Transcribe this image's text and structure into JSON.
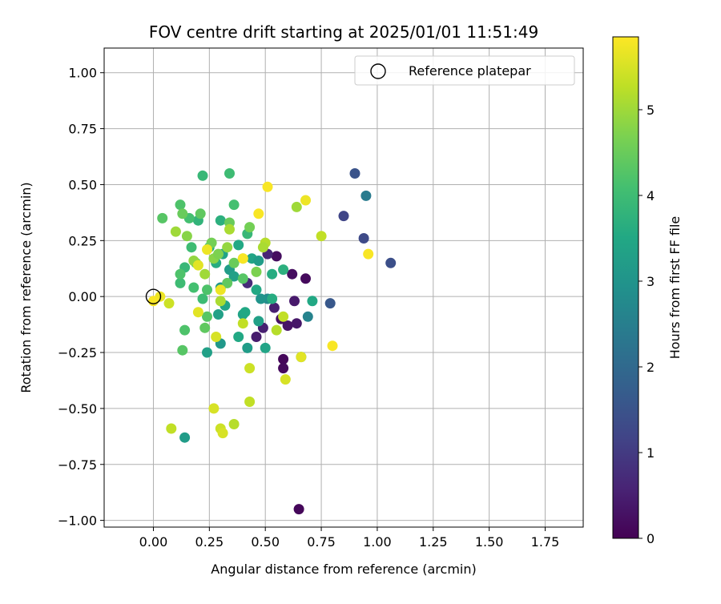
{
  "chart_data": {
    "type": "scatter",
    "title": "FOV centre drift starting at 2025/01/01 11:51:49",
    "xlabel": "Angular distance from reference (arcmin)",
    "ylabel": "Rotation from reference (arcmin)",
    "xlim": [
      -0.22,
      1.92
    ],
    "ylim": [
      -1.03,
      1.11
    ],
    "xticks": [
      0.0,
      0.25,
      0.5,
      0.75,
      1.0,
      1.25,
      1.5,
      1.75
    ],
    "xtick_labels": [
      "0.00",
      "0.25",
      "0.50",
      "0.75",
      "1.00",
      "1.25",
      "1.50",
      "1.75"
    ],
    "yticks": [
      -1.0,
      -0.75,
      -0.5,
      -0.25,
      0.0,
      0.25,
      0.5,
      0.75,
      1.0
    ],
    "ytick_labels": [
      "−1.00",
      "−0.75",
      "−0.50",
      "−0.25",
      "0.00",
      "0.25",
      "0.50",
      "0.75",
      "1.00"
    ],
    "grid": true,
    "legend": {
      "placement": "top-right",
      "entries": [
        "Reference platepar"
      ]
    },
    "reference_point": {
      "name": "Reference platepar",
      "x": 0.0,
      "y": 0.0
    },
    "colorbar": {
      "label": "Hours from first FF file",
      "min": 0,
      "max": 5.85,
      "ticks": [
        0,
        1,
        2,
        3,
        4,
        5
      ],
      "tick_labels": [
        "0",
        "1",
        "2",
        "3",
        "4",
        "5"
      ],
      "colormap": "viridis"
    },
    "series": [
      {
        "color_by": "Hours from first FF file",
        "points": [
          [
            0.65,
            -0.95,
            0.1
          ],
          [
            0.55,
            0.18,
            0.2
          ],
          [
            0.62,
            0.1,
            0.2
          ],
          [
            0.68,
            0.08,
            0.15
          ],
          [
            0.58,
            -0.28,
            0.1
          ],
          [
            0.58,
            -0.32,
            0.15
          ],
          [
            0.6,
            -0.13,
            0.3
          ],
          [
            0.57,
            -0.1,
            0.25
          ],
          [
            0.63,
            -0.02,
            0.4
          ],
          [
            0.64,
            -0.12,
            0.35
          ],
          [
            0.49,
            -0.14,
            0.5
          ],
          [
            0.46,
            -0.18,
            0.45
          ],
          [
            0.51,
            0.19,
            0.6
          ],
          [
            0.54,
            -0.05,
            0.5
          ],
          [
            0.42,
            0.06,
            0.7
          ],
          [
            0.9,
            0.55,
            1.5
          ],
          [
            0.85,
            0.36,
            1.2
          ],
          [
            0.94,
            0.26,
            1.3
          ],
          [
            1.06,
            0.15,
            1.4
          ],
          [
            0.79,
            -0.03,
            1.6
          ],
          [
            0.95,
            0.45,
            2.4
          ],
          [
            0.69,
            -0.09,
            2.6
          ],
          [
            0.51,
            -0.01,
            2.8
          ],
          [
            0.48,
            -0.01,
            3.0
          ],
          [
            0.34,
            0.12,
            3.2
          ],
          [
            0.3,
            0.04,
            3.1
          ],
          [
            0.36,
            0.09,
            3.3
          ],
          [
            0.44,
            0.17,
            3.4
          ],
          [
            0.47,
            0.16,
            3.2
          ],
          [
            0.38,
            0.23,
            3.5
          ],
          [
            0.28,
            0.15,
            3.6
          ],
          [
            0.31,
            0.19,
            3.4
          ],
          [
            0.25,
            0.22,
            3.7
          ],
          [
            0.29,
            -0.08,
            3.3
          ],
          [
            0.32,
            -0.04,
            3.4
          ],
          [
            0.38,
            -0.18,
            3.5
          ],
          [
            0.42,
            -0.23,
            3.2
          ],
          [
            0.3,
            -0.21,
            3.1
          ],
          [
            0.24,
            -0.25,
            3.3
          ],
          [
            0.14,
            -0.63,
            3.2
          ],
          [
            0.4,
            -0.08,
            3.4
          ],
          [
            0.41,
            -0.07,
            3.5
          ],
          [
            0.47,
            -0.11,
            3.3
          ],
          [
            0.5,
            -0.23,
            3.4
          ],
          [
            0.53,
            -0.01,
            3.6
          ],
          [
            0.46,
            0.03,
            3.5
          ],
          [
            0.58,
            0.12,
            3.7
          ],
          [
            0.53,
            0.1,
            3.6
          ],
          [
            0.71,
            -0.02,
            3.5
          ],
          [
            0.66,
            -0.27,
            3.6
          ],
          [
            0.2,
            0.34,
            3.8
          ],
          [
            0.3,
            0.34,
            3.7
          ],
          [
            0.42,
            0.28,
            3.9
          ],
          [
            0.22,
            0.54,
            3.9
          ],
          [
            0.34,
            0.55,
            4.0
          ],
          [
            0.36,
            0.41,
            4.1
          ],
          [
            0.12,
            0.41,
            4.2
          ],
          [
            0.16,
            0.35,
            4.1
          ],
          [
            0.17,
            0.22,
            4.0
          ],
          [
            0.14,
            0.13,
            3.9
          ],
          [
            0.12,
            0.06,
            4.0
          ],
          [
            0.18,
            0.04,
            4.1
          ],
          [
            0.22,
            -0.01,
            4.0
          ],
          [
            0.24,
            0.03,
            4.2
          ],
          [
            0.21,
            0.37,
            4.4
          ],
          [
            0.13,
            0.37,
            4.5
          ],
          [
            0.04,
            0.35,
            4.3
          ],
          [
            0.19,
            0.15,
            4.4
          ],
          [
            0.12,
            0.1,
            4.2
          ],
          [
            0.24,
            -0.09,
            4.3
          ],
          [
            0.14,
            -0.15,
            4.2
          ],
          [
            0.13,
            -0.24,
            4.3
          ],
          [
            0.23,
            -0.14,
            4.4
          ],
          [
            0.34,
            0.33,
            4.5
          ],
          [
            0.33,
            0.06,
            4.4
          ],
          [
            0.4,
            0.08,
            4.3
          ],
          [
            0.43,
            0.31,
            4.6
          ],
          [
            0.36,
            0.15,
            4.5
          ],
          [
            0.46,
            0.11,
            4.7
          ],
          [
            0.26,
            0.24,
            4.6
          ],
          [
            0.27,
            0.17,
            4.8
          ],
          [
            0.29,
            0.19,
            4.7
          ],
          [
            0.33,
            0.22,
            4.9
          ],
          [
            0.1,
            0.29,
            5.0
          ],
          [
            0.15,
            0.27,
            4.8
          ],
          [
            0.18,
            0.16,
            4.9
          ],
          [
            0.23,
            0.1,
            5.0
          ],
          [
            0.3,
            -0.02,
            5.1
          ],
          [
            0.4,
            0.17,
            5.0
          ],
          [
            0.5,
            0.24,
            5.2
          ],
          [
            0.49,
            0.22,
            5.1
          ],
          [
            0.55,
            -0.15,
            5.2
          ],
          [
            0.58,
            -0.09,
            5.3
          ],
          [
            0.64,
            0.4,
            5.0
          ],
          [
            0.34,
            0.3,
            5.1
          ],
          [
            0.4,
            -0.12,
            5.3
          ],
          [
            0.43,
            -0.32,
            5.4
          ],
          [
            0.43,
            -0.47,
            5.3
          ],
          [
            0.36,
            -0.57,
            5.2
          ],
          [
            0.27,
            -0.5,
            5.5
          ],
          [
            0.3,
            -0.59,
            5.4
          ],
          [
            0.31,
            -0.61,
            5.5
          ],
          [
            0.08,
            -0.59,
            5.3
          ],
          [
            0.07,
            -0.03,
            5.4
          ],
          [
            0.75,
            0.27,
            5.3
          ],
          [
            0.59,
            -0.37,
            5.5
          ],
          [
            0.66,
            -0.27,
            5.6
          ],
          [
            0.2,
            -0.07,
            5.6
          ],
          [
            0.28,
            -0.18,
            5.5
          ],
          [
            0.24,
            0.21,
            5.7
          ],
          [
            0.2,
            0.14,
            5.6
          ],
          [
            0.3,
            0.03,
            5.7
          ],
          [
            0.03,
            0.0,
            5.7
          ],
          [
            0.0,
            -0.02,
            5.8
          ],
          [
            0.47,
            0.37,
            5.8
          ],
          [
            0.51,
            0.49,
            5.8
          ],
          [
            0.68,
            0.43,
            5.7
          ],
          [
            0.96,
            0.19,
            5.8
          ],
          [
            0.8,
            -0.22,
            5.8
          ],
          [
            0.4,
            0.17,
            5.8
          ]
        ]
      }
    ]
  }
}
